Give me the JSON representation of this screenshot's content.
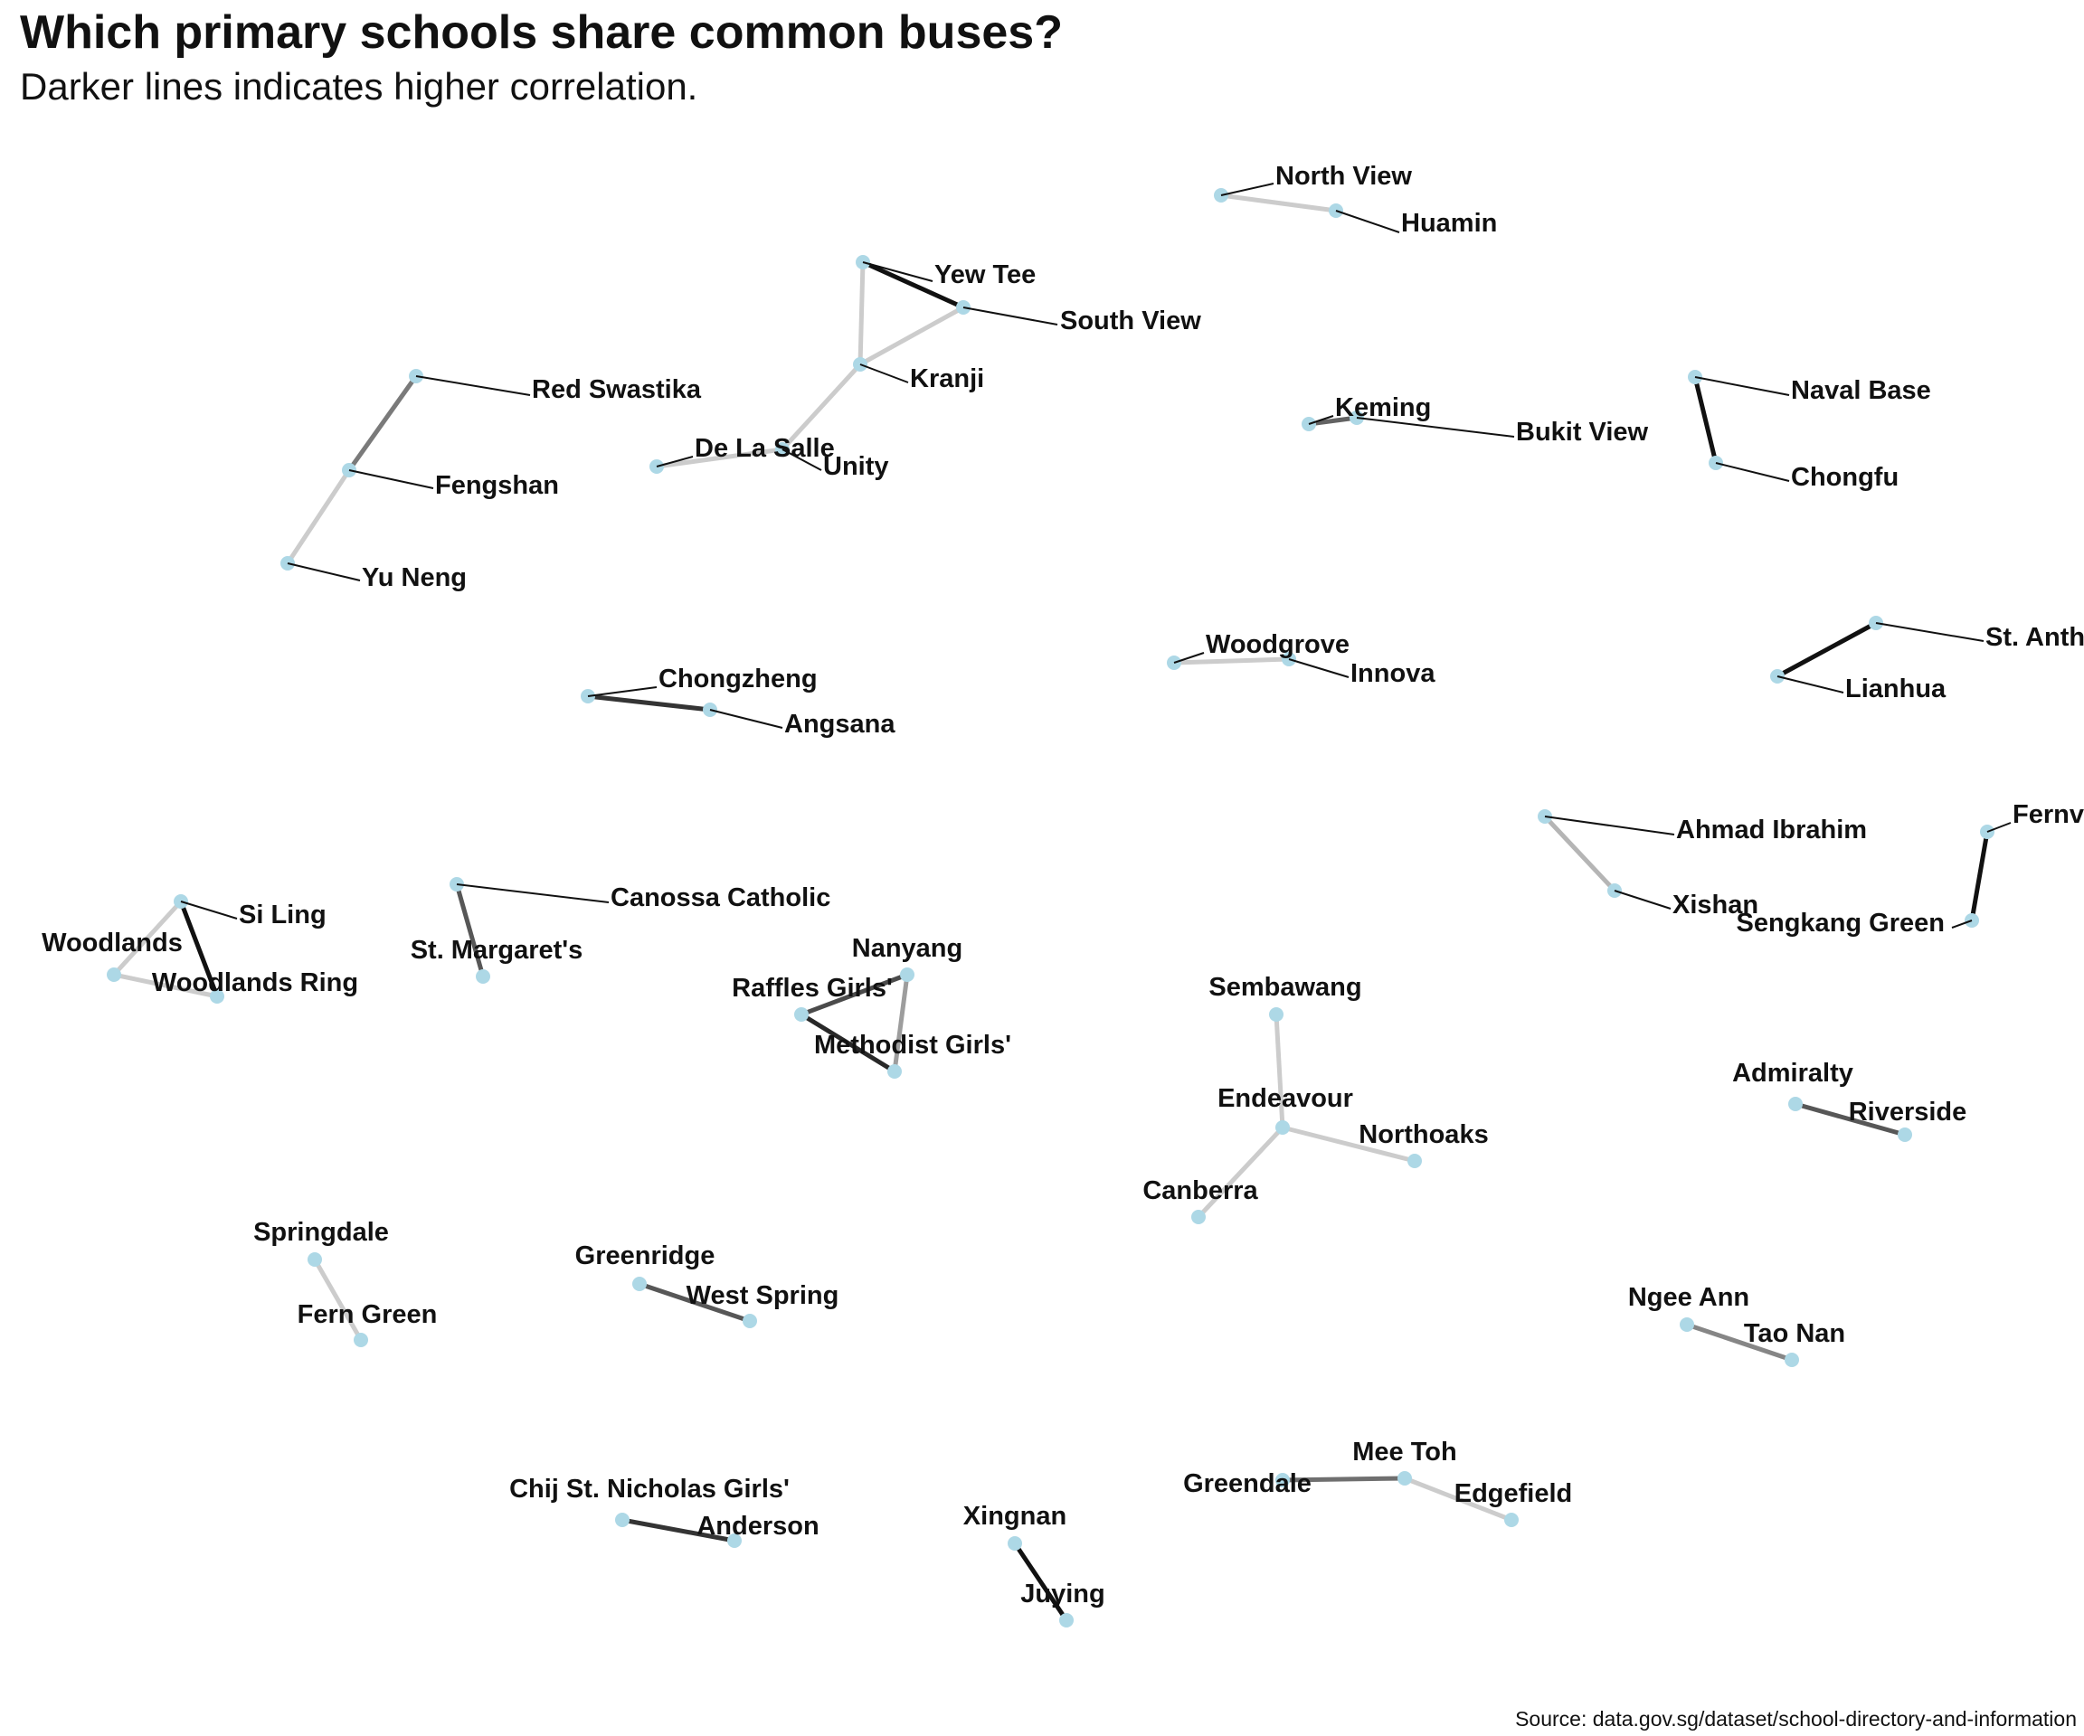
{
  "title": "Which primary schools share common buses?",
  "subtitle": "Darker lines indicates higher correlation.",
  "caption": "Source: data.gov.sg/dataset/school-directory-and-information",
  "colors": {
    "node": "#add8e6",
    "label_text": "#111111",
    "leader": "#111111"
  },
  "nodes": [
    {
      "id": "north-view",
      "label": "North View"
    },
    {
      "id": "huamin",
      "label": "Huamin"
    },
    {
      "id": "yew-tee",
      "label": "Yew Tee"
    },
    {
      "id": "south-view",
      "label": "South View"
    },
    {
      "id": "kranji",
      "label": "Kranji"
    },
    {
      "id": "red-swastika",
      "label": "Red Swastika"
    },
    {
      "id": "fengshan",
      "label": "Fengshan"
    },
    {
      "id": "yu-neng",
      "label": "Yu Neng"
    },
    {
      "id": "de-la-salle",
      "label": "De La Salle"
    },
    {
      "id": "unity",
      "label": "Unity"
    },
    {
      "id": "keming",
      "label": "Keming"
    },
    {
      "id": "bukit-view",
      "label": "Bukit View"
    },
    {
      "id": "naval-base",
      "label": "Naval Base"
    },
    {
      "id": "chongfu",
      "label": "Chongfu"
    },
    {
      "id": "chongzheng",
      "label": "Chongzheng"
    },
    {
      "id": "angsana",
      "label": "Angsana"
    },
    {
      "id": "woodgrove",
      "label": "Woodgrove"
    },
    {
      "id": "innova",
      "label": "Innova"
    },
    {
      "id": "st-anthony",
      "label": "St. Anth"
    },
    {
      "id": "lianhua",
      "label": "Lianhua"
    },
    {
      "id": "ahmad-ibrahim",
      "label": "Ahmad Ibrahim"
    },
    {
      "id": "xishan",
      "label": "Xishan"
    },
    {
      "id": "fernvale",
      "label": "Fernv"
    },
    {
      "id": "sengkang-green",
      "label": "Sengkang Green"
    },
    {
      "id": "si-ling",
      "label": "Si Ling"
    },
    {
      "id": "woodlands",
      "label": "Woodlands"
    },
    {
      "id": "woodlands-ring",
      "label": "Woodlands Ring"
    },
    {
      "id": "canossa-catholic",
      "label": "Canossa Catholic"
    },
    {
      "id": "st-margarets",
      "label": "St. Margaret's"
    },
    {
      "id": "nanyang",
      "label": "Nanyang"
    },
    {
      "id": "raffles-girls",
      "label": "Raffles Girls'"
    },
    {
      "id": "methodist-girls",
      "label": "Methodist Girls'"
    },
    {
      "id": "sembawang",
      "label": "Sembawang"
    },
    {
      "id": "endeavour",
      "label": "Endeavour"
    },
    {
      "id": "northoaks",
      "label": "Northoaks"
    },
    {
      "id": "canberra",
      "label": "Canberra"
    },
    {
      "id": "admiralty",
      "label": "Admiralty"
    },
    {
      "id": "riverside",
      "label": "Riverside"
    },
    {
      "id": "springdale",
      "label": "Springdale"
    },
    {
      "id": "fern-green",
      "label": "Fern Green"
    },
    {
      "id": "greenridge",
      "label": "Greenridge"
    },
    {
      "id": "west-spring",
      "label": "West Spring"
    },
    {
      "id": "ngee-ann",
      "label": "Ngee Ann"
    },
    {
      "id": "tao-nan",
      "label": "Tao Nan"
    },
    {
      "id": "mee-toh",
      "label": "Mee Toh"
    },
    {
      "id": "greendale",
      "label": "Greendale"
    },
    {
      "id": "edgefield",
      "label": "Edgefield"
    },
    {
      "id": "chij-st-nicholas",
      "label": "Chij St. Nicholas Girls'"
    },
    {
      "id": "anderson",
      "label": "Anderson"
    },
    {
      "id": "xingnan",
      "label": "Xingnan"
    },
    {
      "id": "juying",
      "label": "Juying"
    }
  ],
  "edges": [
    {
      "source": "north-view",
      "target": "huamin",
      "correlation": 0.2
    },
    {
      "source": "yew-tee",
      "target": "south-view",
      "correlation": 1.0
    },
    {
      "source": "yew-tee",
      "target": "kranji",
      "correlation": 0.2
    },
    {
      "source": "south-view",
      "target": "kranji",
      "correlation": 0.2
    },
    {
      "source": "kranji",
      "target": "unity",
      "correlation": 0.2
    },
    {
      "source": "de-la-salle",
      "target": "unity",
      "correlation": 0.2
    },
    {
      "source": "red-swastika",
      "target": "fengshan",
      "correlation": 0.55
    },
    {
      "source": "fengshan",
      "target": "yu-neng",
      "correlation": 0.2
    },
    {
      "source": "keming",
      "target": "bukit-view",
      "correlation": 0.65
    },
    {
      "source": "naval-base",
      "target": "chongfu",
      "correlation": 1.0
    },
    {
      "source": "chongzheng",
      "target": "angsana",
      "correlation": 0.85
    },
    {
      "source": "woodgrove",
      "target": "innova",
      "correlation": 0.2
    },
    {
      "source": "st-anthony",
      "target": "lianhua",
      "correlation": 1.0
    },
    {
      "source": "ahmad-ibrahim",
      "target": "xishan",
      "correlation": 0.3
    },
    {
      "source": "fernvale",
      "target": "sengkang-green",
      "correlation": 1.0
    },
    {
      "source": "si-ling",
      "target": "woodlands",
      "correlation": 0.2
    },
    {
      "source": "si-ling",
      "target": "woodlands-ring",
      "correlation": 1.0
    },
    {
      "source": "woodlands",
      "target": "woodlands-ring",
      "correlation": 0.2
    },
    {
      "source": "canossa-catholic",
      "target": "st-margarets",
      "correlation": 0.7
    },
    {
      "source": "nanyang",
      "target": "raffles-girls",
      "correlation": 0.75
    },
    {
      "source": "nanyang",
      "target": "methodist-girls",
      "correlation": 0.4
    },
    {
      "source": "raffles-girls",
      "target": "methodist-girls",
      "correlation": 0.9
    },
    {
      "source": "sembawang",
      "target": "endeavour",
      "correlation": 0.2
    },
    {
      "source": "endeavour",
      "target": "northoaks",
      "correlation": 0.2
    },
    {
      "source": "endeavour",
      "target": "canberra",
      "correlation": 0.2
    },
    {
      "source": "admiralty",
      "target": "riverside",
      "correlation": 0.7
    },
    {
      "source": "springdale",
      "target": "fern-green",
      "correlation": 0.2
    },
    {
      "source": "greenridge",
      "target": "west-spring",
      "correlation": 0.7
    },
    {
      "source": "ngee-ann",
      "target": "tao-nan",
      "correlation": 0.5
    },
    {
      "source": "greendale",
      "target": "mee-toh",
      "correlation": 0.6
    },
    {
      "source": "mee-toh",
      "target": "edgefield",
      "correlation": 0.2
    },
    {
      "source": "chij-st-nicholas",
      "target": "anderson",
      "correlation": 0.85
    },
    {
      "source": "xingnan",
      "target": "juying",
      "correlation": 1.0
    }
  ]
}
